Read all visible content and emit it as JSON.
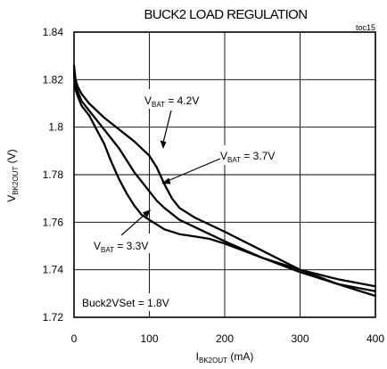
{
  "chart_data": {
    "type": "line",
    "title": "BUCK2 LOAD REGULATION",
    "figure_tag": "toc15",
    "xlabel": {
      "main": "I",
      "sub": "BK2OUT",
      "unit": " (mA)"
    },
    "ylabel": {
      "main": "V",
      "sub": "BK2OUT",
      "unit": " (V)"
    },
    "xlim": [
      0,
      400
    ],
    "ylim": [
      1.72,
      1.84
    ],
    "xticks": [
      0,
      100,
      200,
      300,
      400
    ],
    "yticks": [
      1.72,
      1.74,
      1.76,
      1.78,
      1.8,
      1.82,
      1.84
    ],
    "ytick_labels": [
      "1.72",
      "1.74",
      "1.76",
      "1.78",
      "1.8",
      "1.82",
      "1.84"
    ],
    "grid": true,
    "series": [
      {
        "name": "VBAT = 4.2V",
        "x": [
          0,
          2,
          5,
          10,
          20,
          40,
          60,
          80,
          100,
          110,
          120,
          130,
          140,
          160,
          180,
          200,
          250,
          300,
          350,
          400
        ],
        "y": [
          1.826,
          1.82,
          1.817,
          1.814,
          1.81,
          1.804,
          1.799,
          1.794,
          1.788,
          1.783,
          1.776,
          1.77,
          1.766,
          1.762,
          1.759,
          1.756,
          1.748,
          1.74,
          1.736,
          1.733
        ]
      },
      {
        "name": "VBAT = 3.7V",
        "x": [
          0,
          2,
          5,
          10,
          20,
          40,
          60,
          70,
          80,
          90,
          100,
          110,
          120,
          140,
          160,
          180,
          200,
          250,
          300,
          350,
          400
        ],
        "y": [
          1.824,
          1.818,
          1.815,
          1.811,
          1.807,
          1.799,
          1.791,
          1.786,
          1.781,
          1.777,
          1.773,
          1.769,
          1.766,
          1.761,
          1.758,
          1.755,
          1.752,
          1.745,
          1.739,
          1.734,
          1.731
        ]
      },
      {
        "name": "VBAT = 3.3V",
        "x": [
          0,
          2,
          5,
          10,
          20,
          30,
          40,
          50,
          60,
          70,
          80,
          90,
          100,
          120,
          140,
          160,
          180,
          200,
          250,
          300,
          350,
          400
        ],
        "y": [
          1.822,
          1.816,
          1.813,
          1.809,
          1.805,
          1.799,
          1.793,
          1.785,
          1.778,
          1.772,
          1.767,
          1.763,
          1.761,
          1.757,
          1.755,
          1.754,
          1.753,
          1.751,
          1.745,
          1.74,
          1.734,
          1.729
        ]
      }
    ],
    "annotations": [
      {
        "sub": "BAT",
        "text": " = 4.2V"
      },
      {
        "sub": "BAT",
        "text": " = 3.7V"
      },
      {
        "sub": "BAT",
        "text": " = 3.3V"
      },
      {
        "text": "Buck2VSet = 1.8V"
      }
    ]
  }
}
